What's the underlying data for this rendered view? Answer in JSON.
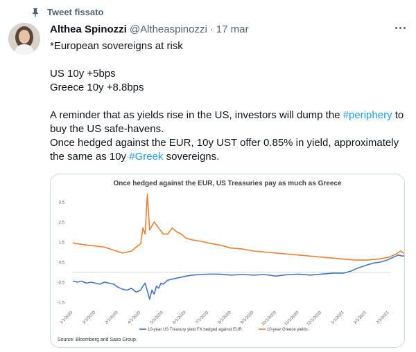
{
  "pinned_label": "Tweet fissato",
  "author": {
    "name": "Althea Spinozzi",
    "handle": "@Altheaspinozzi",
    "date": "17 mar"
  },
  "tweet": {
    "line1": "*European sovereigns at risk",
    "line2": "US 10y +5bps",
    "line3": "Greece 10y +8.8bps",
    "para3_before": "A reminder that as yields rise in the US, investors will dump the ",
    "hashtag1": "#periphery",
    "para3_after": " to buy the US safe-havens.",
    "para4_before": "Once hedged against the EUR, 10y UST offer 0.85% in yield, approximately the same as 10y ",
    "hashtag2": "#Greek",
    "para4_after": " sovereigns."
  },
  "chart_data": {
    "type": "line",
    "title": "Once hedged against the EUR, US Treasuries pay as much as Greece",
    "source": "Source: Bloomberg and Saxo Group.",
    "ylim": [
      -1.5,
      3.5
    ],
    "y_ticks": [
      "3.5",
      "2.5",
      "1.5",
      "0.5",
      "-0.5",
      "-1.5"
    ],
    "x_ticks": [
      "1/1/2020",
      "2/1/2020",
      "3/1/2020",
      "4/1/2020",
      "5/1/2020",
      "6/1/2020",
      "7/1/2020",
      "8/1/2020",
      "9/1/2020",
      "10/1/2020",
      "11/1/2020",
      "12/1/2020",
      "1/1/2021",
      "2/1/2021",
      "3/1/2021"
    ],
    "colors": {
      "us": "#4472c4",
      "greece": "#ed7d31"
    },
    "series": [
      {
        "name": "10-year US Treasury yield FX hedged against EUR",
        "points": [
          [
            0,
            -0.45
          ],
          [
            0.2,
            -0.5
          ],
          [
            0.4,
            -0.45
          ],
          [
            0.6,
            -0.55
          ],
          [
            0.8,
            -0.5
          ],
          [
            1.0,
            -0.55
          ],
          [
            1.2,
            -0.6
          ],
          [
            1.4,
            -0.5
          ],
          [
            1.6,
            -0.55
          ],
          [
            1.8,
            -0.6
          ],
          [
            2.0,
            -0.75
          ],
          [
            2.2,
            -0.85
          ],
          [
            2.4,
            -0.9
          ],
          [
            2.6,
            -0.8
          ],
          [
            2.8,
            -1.0
          ],
          [
            3.0,
            -0.9
          ],
          [
            3.1,
            -0.7
          ],
          [
            3.2,
            -0.55
          ],
          [
            3.3,
            -0.95
          ],
          [
            3.4,
            -1.35
          ],
          [
            3.5,
            -0.9
          ],
          [
            3.6,
            -1.1
          ],
          [
            3.7,
            -0.7
          ],
          [
            3.8,
            -0.8
          ],
          [
            3.9,
            -0.55
          ],
          [
            4.0,
            -0.6
          ],
          [
            4.2,
            -0.4
          ],
          [
            4.4,
            -0.35
          ],
          [
            4.6,
            -0.3
          ],
          [
            4.8,
            -0.25
          ],
          [
            5.0,
            -0.2
          ],
          [
            5.3,
            -0.15
          ],
          [
            5.6,
            -0.12
          ],
          [
            6.0,
            -0.1
          ],
          [
            6.5,
            -0.1
          ],
          [
            7.0,
            -0.15
          ],
          [
            7.5,
            -0.12
          ],
          [
            8.0,
            -0.15
          ],
          [
            8.5,
            -0.12
          ],
          [
            9.0,
            -0.2
          ],
          [
            9.3,
            -0.15
          ],
          [
            9.6,
            -0.12
          ],
          [
            10.0,
            -0.1
          ],
          [
            10.5,
            -0.15
          ],
          [
            11.0,
            -0.1
          ],
          [
            11.5,
            -0.05
          ],
          [
            12.0,
            -0.05
          ],
          [
            12.3,
            0.05
          ],
          [
            12.6,
            0.2
          ],
          [
            13.0,
            0.35
          ],
          [
            13.3,
            0.45
          ],
          [
            13.6,
            0.5
          ],
          [
            13.9,
            0.6
          ],
          [
            14.2,
            0.75
          ],
          [
            14.4,
            0.85
          ],
          [
            14.6,
            0.8
          ],
          [
            14.8,
            0.85
          ]
        ]
      },
      {
        "name": "10-year Greece yields",
        "points": [
          [
            0,
            1.45
          ],
          [
            0.3,
            1.4
          ],
          [
            0.6,
            1.35
          ],
          [
            1.0,
            1.3
          ],
          [
            1.4,
            1.25
          ],
          [
            1.8,
            1.1
          ],
          [
            2.2,
            0.95
          ],
          [
            2.4,
            1.0
          ],
          [
            2.6,
            1.05
          ],
          [
            2.8,
            1.25
          ],
          [
            3.0,
            1.4
          ],
          [
            3.1,
            2.2
          ],
          [
            3.2,
            1.9
          ],
          [
            3.3,
            3.9
          ],
          [
            3.4,
            2.1
          ],
          [
            3.6,
            2.5
          ],
          [
            3.8,
            2.2
          ],
          [
            4.0,
            1.9
          ],
          [
            4.2,
            1.9
          ],
          [
            4.4,
            2.2
          ],
          [
            4.6,
            2.0
          ],
          [
            4.8,
            1.9
          ],
          [
            5.0,
            1.7
          ],
          [
            5.3,
            1.6
          ],
          [
            5.6,
            1.55
          ],
          [
            6.0,
            1.45
          ],
          [
            6.5,
            1.35
          ],
          [
            7.0,
            1.2
          ],
          [
            7.5,
            1.15
          ],
          [
            8.0,
            1.05
          ],
          [
            8.5,
            1.0
          ],
          [
            9.0,
            0.95
          ],
          [
            9.5,
            0.9
          ],
          [
            10.0,
            0.85
          ],
          [
            10.5,
            0.8
          ],
          [
            11.0,
            0.75
          ],
          [
            11.5,
            0.7
          ],
          [
            12.0,
            0.65
          ],
          [
            12.5,
            0.6
          ],
          [
            13.0,
            0.6
          ],
          [
            13.5,
            0.65
          ],
          [
            14.0,
            0.75
          ],
          [
            14.3,
            0.9
          ],
          [
            14.5,
            1.05
          ],
          [
            14.7,
            0.9
          ],
          [
            14.9,
            0.85
          ]
        ]
      }
    ]
  }
}
